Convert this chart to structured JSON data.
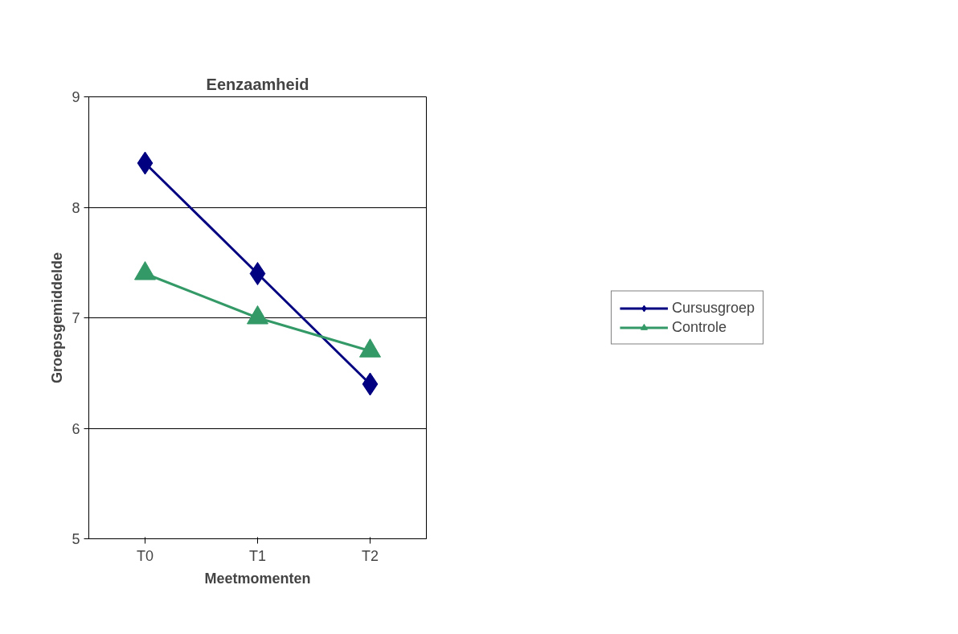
{
  "chart_data": {
    "type": "line",
    "title": "Eenzaamheid",
    "xlabel": "Meetmomenten",
    "ylabel": "Groepsgemiddelde",
    "categories": [
      "T0",
      "T1",
      "T2"
    ],
    "series": [
      {
        "name": "Cursusgroep",
        "color": "#000080",
        "values": [
          8.4,
          7.4,
          6.4
        ],
        "marker": "diamond"
      },
      {
        "name": "Controle",
        "color": "#339966",
        "values": [
          7.4,
          7.0,
          6.7
        ],
        "marker": "triangle"
      }
    ],
    "ylim": [
      5,
      9
    ],
    "yticks": [
      5,
      6,
      7,
      8,
      9
    ],
    "grid": "y",
    "legend": "right",
    "line_style": "solid"
  }
}
